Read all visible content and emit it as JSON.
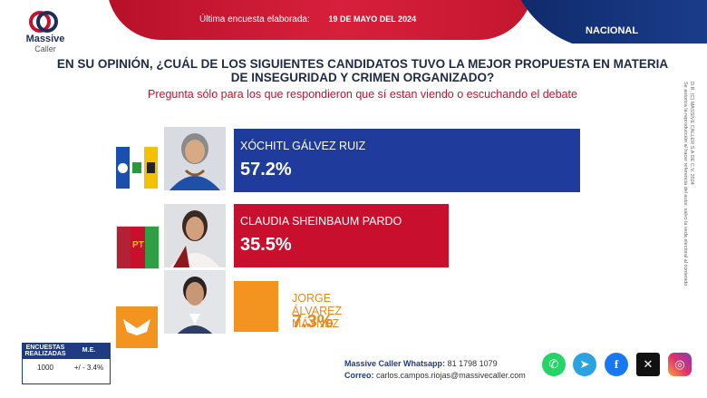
{
  "header": {
    "survey_label": "Última encuesta elaborada:",
    "date": "19 DE MAYO DEL 2024",
    "scope": "NACIONAL"
  },
  "logo": {
    "name": "Massive",
    "sub": "Caller"
  },
  "question": "EN SU OPINIÓN, ¿CUÁL DE LOS SIGUIENTES CANDIDATOS TUVO LA MEJOR PROPUESTA EN MATERIA DE INSEGURIDAD Y CRIMEN ORGANIZADO?",
  "note": "Pregunta sólo para los que respondieron que sí estan viendo o escuchando el debate",
  "colors": {
    "xochitl": "#1f3b9b",
    "claudia": "#c8102e",
    "jorge": "#f39420",
    "navy": "#1f3b82",
    "red": "#c8102e"
  },
  "chart_data": {
    "type": "bar",
    "categories": [
      "XÓCHITL GÁLVEZ RUIZ",
      "CLAUDIA SHEINBAUM PARDO",
      "JORGE ÁLVAREZ MÁYNEZ"
    ],
    "values": [
      57.2,
      35.5,
      7.3
    ],
    "value_labels": [
      "57.2%",
      "35.5%",
      "7.3%"
    ],
    "party_labels": [
      "PAN PRI PRD",
      "PT Morena Verde",
      "MOVIMIENTO CIUDADANO"
    ]
  },
  "footer": {
    "table": {
      "h1": "ENCUESTAS REALIZADAS",
      "h2": "M.E.",
      "v1": "1000",
      "v2": "+/ - 3.4%"
    },
    "whatsapp_label": "Massive Caller Whatsapp:",
    "whatsapp": "81 1798 1079",
    "email_label": "Correo:",
    "email": "carlos.campos.riojas@massivecaller.com"
  },
  "legal": {
    "line1": "D.R. (C) MASSIVE CALLER S.A DE C.V. 2024",
    "line2": "Se autoriza la reproducción al hacer referencia del autor, salvo la veda electoral al contenido."
  }
}
